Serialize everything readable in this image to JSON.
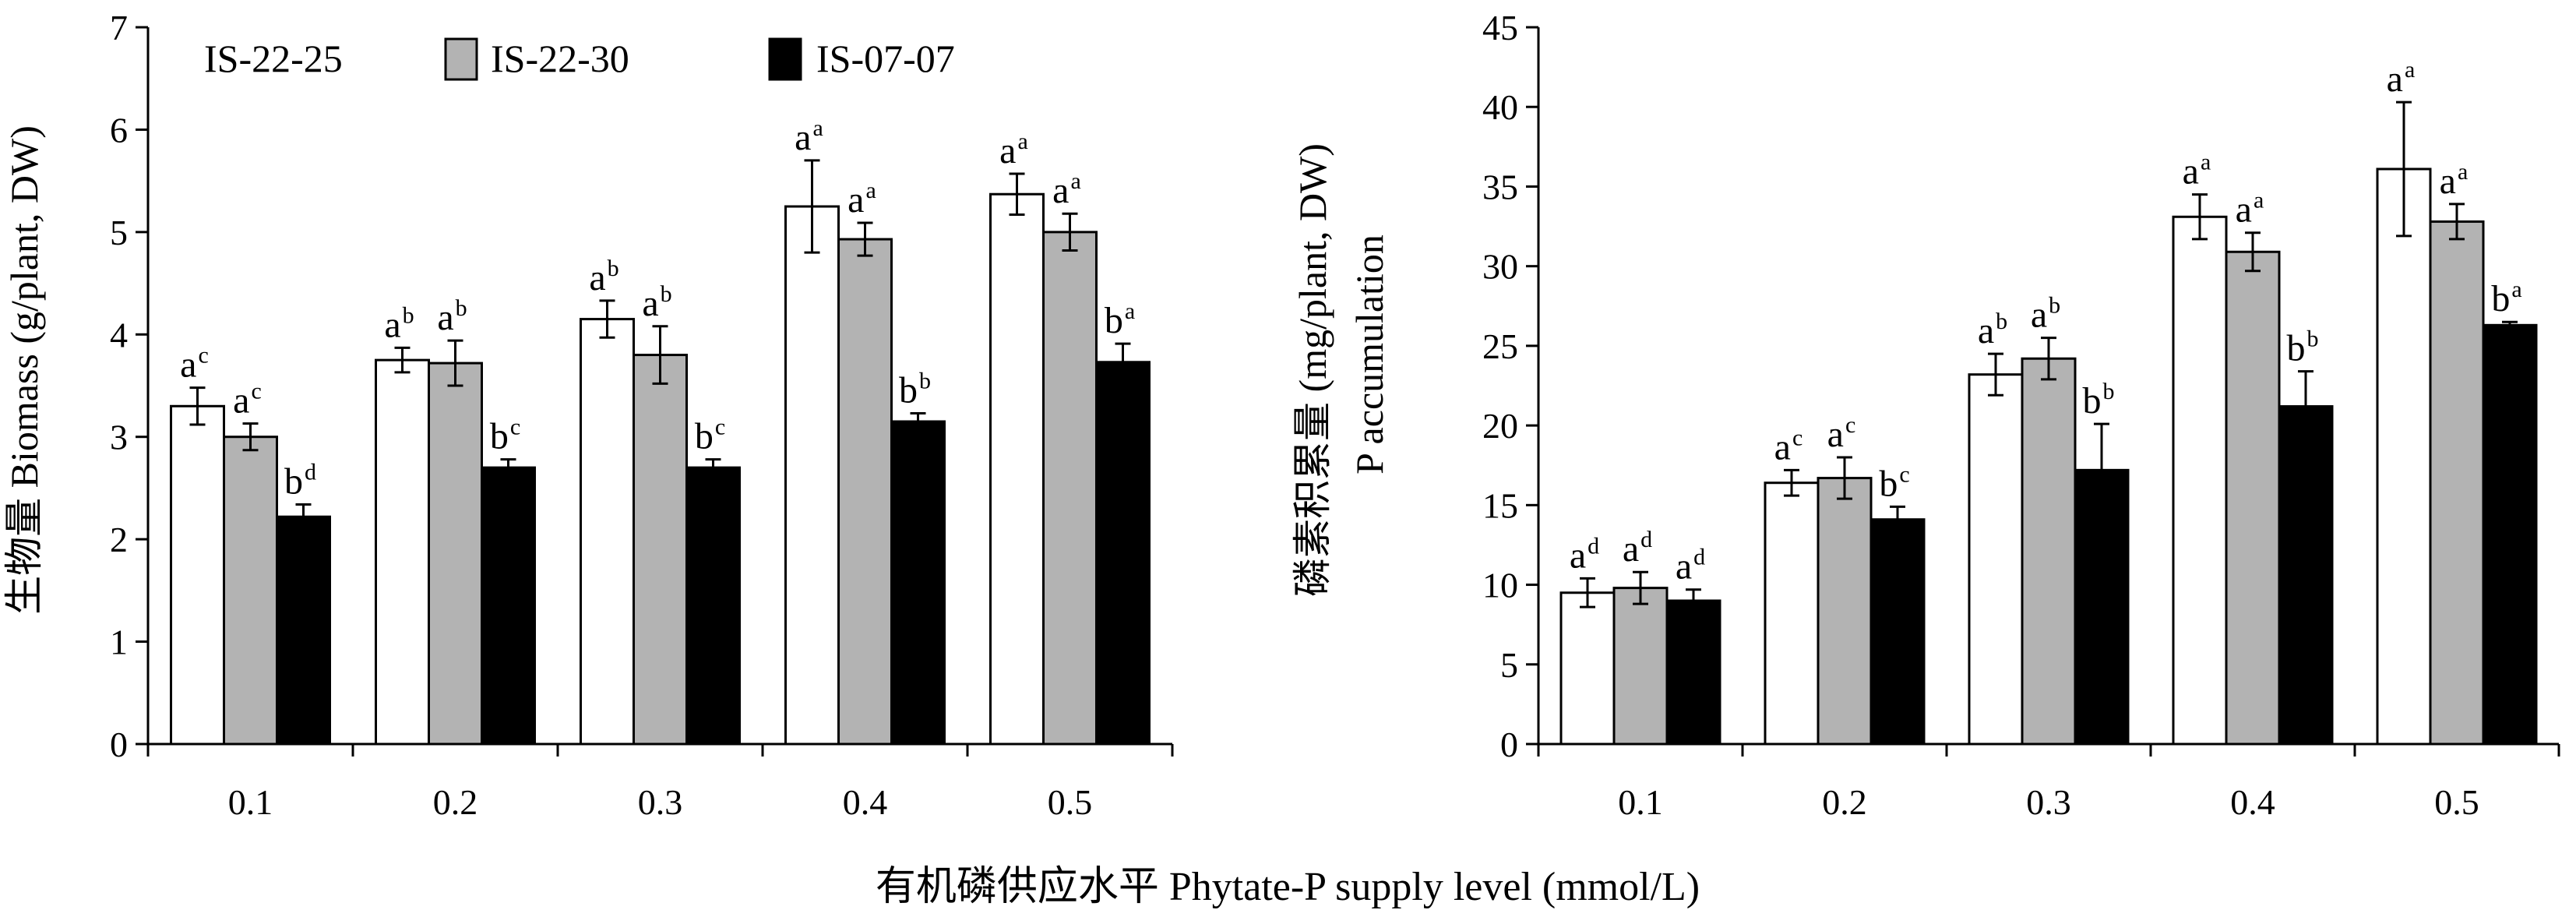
{
  "legend": [
    "IS-22-25",
    "IS-22-30",
    "IS-07-07"
  ],
  "x_axis_label": "有机磷供应水平 Phytate-P supply level (mmol/L)",
  "chart_data": [
    {
      "type": "bar",
      "title": "",
      "categories": [
        "0.1",
        "0.2",
        "0.3",
        "0.4",
        "0.5"
      ],
      "ylabel": "生物量 Biomass (g/plant, DW)",
      "ylim": [
        0,
        7
      ],
      "yticks": [
        "0",
        "1",
        "2",
        "3",
        "4",
        "5",
        "6",
        "7"
      ],
      "colors": [
        "#ffffff",
        "#b3b3b3",
        "#000000"
      ],
      "series": [
        {
          "name": "IS-22-25",
          "values": [
            3.3,
            3.75,
            4.15,
            5.25,
            5.37
          ],
          "errors": [
            0.18,
            0.12,
            0.18,
            0.45,
            0.2
          ],
          "labels": [
            "a",
            "a",
            "a",
            "a",
            "a"
          ],
          "sup": [
            "c",
            "b",
            "b",
            "a",
            "a"
          ]
        },
        {
          "name": "IS-22-30",
          "values": [
            3.0,
            3.72,
            3.8,
            4.93,
            5.0
          ],
          "errors": [
            0.13,
            0.22,
            0.28,
            0.16,
            0.18
          ],
          "labels": [
            "a",
            "a",
            "a",
            "a",
            "a"
          ],
          "sup": [
            "c",
            "b",
            "b",
            "a",
            "a"
          ]
        },
        {
          "name": "IS-07-07",
          "values": [
            2.22,
            2.7,
            2.7,
            3.15,
            3.73
          ],
          "errors": [
            0.12,
            0.08,
            0.08,
            0.08,
            0.18
          ],
          "labels": [
            "b",
            "b",
            "b",
            "b",
            "b"
          ],
          "sup": [
            "d",
            "c",
            "c",
            "b",
            "a"
          ]
        }
      ]
    },
    {
      "type": "bar",
      "title": "",
      "categories": [
        "0.1",
        "0.2",
        "0.3",
        "0.4",
        "0.5"
      ],
      "ylabel": "磷素积累量 (mg/plant, DW)",
      "ylabel2": "P accumulation",
      "ylim": [
        0,
        45
      ],
      "yticks": [
        "0",
        "5",
        "10",
        "15",
        "20",
        "25",
        "30",
        "35",
        "40",
        "45"
      ],
      "colors": [
        "#ffffff",
        "#b3b3b3",
        "#000000"
      ],
      "series": [
        {
          "name": "IS-22-25",
          "values": [
            9.5,
            16.4,
            23.2,
            33.1,
            36.1
          ],
          "errors": [
            0.9,
            0.8,
            1.3,
            1.4,
            4.2
          ],
          "labels": [
            "a",
            "a",
            "a",
            "a",
            "a"
          ],
          "sup": [
            "d",
            "c",
            "b",
            "a",
            "a"
          ]
        },
        {
          "name": "IS-22-30",
          "values": [
            9.8,
            16.7,
            24.2,
            30.9,
            32.8
          ],
          "errors": [
            1.0,
            1.3,
            1.3,
            1.2,
            1.1
          ],
          "labels": [
            "a",
            "a",
            "a",
            "a",
            "a"
          ],
          "sup": [
            "d",
            "c",
            "b",
            "a",
            "a"
          ]
        },
        {
          "name": "IS-07-07",
          "values": [
            9.0,
            14.1,
            17.2,
            21.2,
            26.3
          ],
          "errors": [
            0.7,
            0.8,
            2.9,
            2.2,
            0.2
          ],
          "labels": [
            "a",
            "b",
            "b",
            "b",
            "b"
          ],
          "sup": [
            "d",
            "c",
            "b",
            "b",
            "a"
          ]
        }
      ]
    }
  ]
}
